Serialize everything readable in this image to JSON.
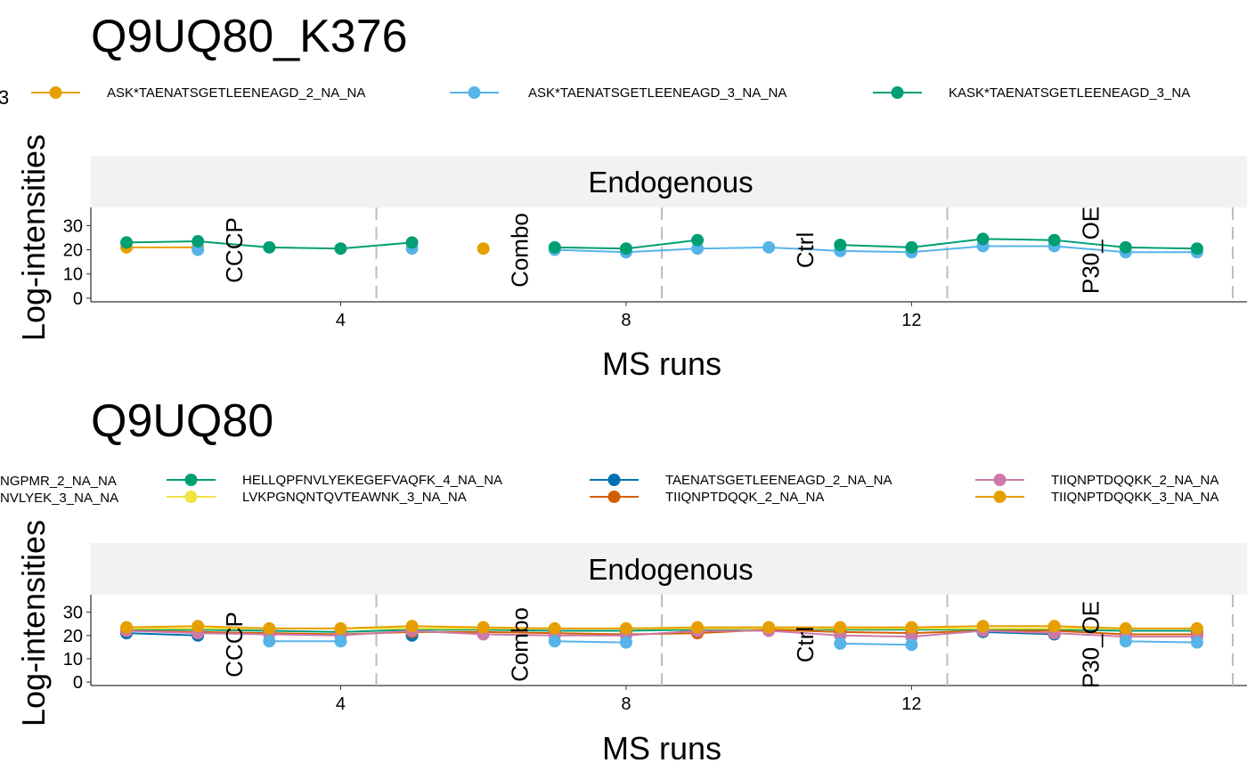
{
  "chart_data": [
    {
      "type": "line",
      "title": "Q9UQ80_K376",
      "facet_label": "Endogenous",
      "xlabel": "MS runs",
      "ylabel": "Log-intensities",
      "xlim": [
        0.5,
        16.7
      ],
      "ylim": [
        -1.5,
        37.5
      ],
      "x_ticks": [
        4,
        8,
        12
      ],
      "y_ticks": [
        0,
        10,
        20,
        30
      ],
      "grid": false,
      "legend_position": "top",
      "legend_cutoff_left": "3",
      "conditions": [
        {
          "label": "CCCP",
          "x": 2.5
        },
        {
          "label": "Combo",
          "x": 6.5
        },
        {
          "label": "Ctrl",
          "x": 10.5
        },
        {
          "label": "P30_OE",
          "x": 14.5
        }
      ],
      "separators": [
        4.5,
        8.5,
        12.5,
        16.5
      ],
      "series": [
        {
          "name": "ASK*TAENATSGETLEENEAGD_2_NA_NA",
          "color": "#E69F00",
          "points": [
            [
              1,
              21
            ],
            [
              2,
              21
            ],
            [
              6,
              20.5
            ]
          ]
        },
        {
          "name": "ASK*TAENATSGETLEENEAGD_3_NA_NA",
          "color": "#56B4E9",
          "points": [
            [
              2,
              20
            ],
            [
              5,
              20.5
            ],
            [
              7,
              20
            ],
            [
              8,
              19
            ],
            [
              9,
              20.5
            ],
            [
              10,
              21
            ],
            [
              11,
              19.5
            ],
            [
              12,
              19
            ],
            [
              13,
              21.5
            ],
            [
              14,
              21.5
            ],
            [
              15,
              19
            ],
            [
              16,
              19
            ]
          ]
        },
        {
          "name": "KASK*TAENATSGETLEENEAGD_3_NA",
          "color": "#009E73",
          "points": [
            [
              1,
              23
            ],
            [
              2,
              23.5
            ],
            [
              3,
              21
            ],
            [
              4,
              20.5
            ],
            [
              5,
              23
            ],
            [
              7,
              21
            ],
            [
              8,
              20.5
            ],
            [
              9,
              24
            ],
            [
              11,
              22
            ],
            [
              12,
              21
            ],
            [
              13,
              24.5
            ],
            [
              14,
              24
            ],
            [
              15,
              21
            ],
            [
              16,
              20.5
            ]
          ]
        }
      ]
    },
    {
      "type": "line",
      "title": "Q9UQ80",
      "facet_label": "Endogenous",
      "xlabel": "MS runs",
      "ylabel": "Log-intensities",
      "xlim": [
        0.5,
        16.7
      ],
      "ylim": [
        -1.5,
        37.5
      ],
      "x_ticks": [
        4,
        8,
        12
      ],
      "y_ticks": [
        0,
        10,
        20,
        30
      ],
      "grid": false,
      "legend_position": "top",
      "legend_cutoff": [
        "NGPMR_2_NA_NA",
        "NVLYEK_3_NA_NA"
      ],
      "conditions": [
        {
          "label": "CCCP",
          "x": 2.5
        },
        {
          "label": "Combo",
          "x": 6.5
        },
        {
          "label": "Ctrl",
          "x": 10.5
        },
        {
          "label": "P30_OE",
          "x": 14.5
        }
      ],
      "separators": [
        4.5,
        8.5,
        12.5,
        16.5
      ],
      "series": [
        {
          "name": "HELLQPFNVLYEKEGEFVAQFK_4_NA_NA",
          "color": "#009E73",
          "points": [
            [
              1,
              22.5
            ],
            [
              2,
              22.5
            ],
            [
              3,
              22
            ],
            [
              4,
              21.5
            ],
            [
              5,
              22.5
            ],
            [
              6,
              22.5
            ],
            [
              7,
              22
            ],
            [
              8,
              22
            ],
            [
              9,
              22.5
            ],
            [
              10,
              23
            ],
            [
              11,
              22.5
            ],
            [
              12,
              22.5
            ],
            [
              13,
              22.5
            ],
            [
              14,
              22.5
            ],
            [
              15,
              22
            ],
            [
              16,
              22
            ]
          ]
        },
        {
          "name": "LVKPGNQNTQVTEAWNK_3_NA_NA",
          "color": "#F0E442",
          "points": [
            [
              1,
              23
            ],
            [
              2,
              23
            ],
            [
              3,
              23
            ],
            [
              4,
              23
            ],
            [
              5,
              23
            ],
            [
              6,
              23
            ],
            [
              7,
              23
            ],
            [
              8,
              23
            ],
            [
              9,
              23
            ],
            [
              10,
              23
            ],
            [
              11,
              23
            ],
            [
              12,
              23
            ],
            [
              13,
              23
            ],
            [
              14,
              23
            ],
            [
              15,
              23
            ],
            [
              16,
              23
            ]
          ]
        },
        {
          "name": "TAENATSGETLEENEAGD_2_NA_NA",
          "color": "#0072B2",
          "points": [
            [
              1,
              21
            ],
            [
              2,
              20
            ],
            [
              5,
              20
            ],
            [
              13,
              21.5
            ],
            [
              14,
              20.5
            ]
          ]
        },
        {
          "name": "TIIQNPTDQQK_2_NA_NA",
          "color": "#D55E00",
          "points": [
            [
              1,
              22
            ],
            [
              2,
              21.5
            ],
            [
              3,
              21
            ],
            [
              4,
              20.5
            ],
            [
              5,
              21.5
            ],
            [
              6,
              21.5
            ],
            [
              7,
              21
            ],
            [
              8,
              20.5
            ],
            [
              9,
              21
            ],
            [
              10,
              22.5
            ],
            [
              11,
              21.5
            ],
            [
              12,
              21
            ],
            [
              13,
              22
            ],
            [
              14,
              22
            ],
            [
              15,
              20.5
            ],
            [
              16,
              20.5
            ]
          ]
        },
        {
          "name": "TIIQNPTDQQKK_2_NA_NA",
          "color": "#CC79A7",
          "points": [
            [
              1,
              22
            ],
            [
              2,
              21
            ],
            [
              3,
              20.5
            ],
            [
              4,
              20
            ],
            [
              5,
              22
            ],
            [
              6,
              20.5
            ],
            [
              7,
              20
            ],
            [
              8,
              20
            ],
            [
              9,
              22
            ],
            [
              10,
              22
            ],
            [
              11,
              20
            ],
            [
              12,
              19.5
            ],
            [
              13,
              22
            ],
            [
              14,
              21
            ],
            [
              15,
              19.5
            ],
            [
              16,
              19.5
            ]
          ]
        },
        {
          "name": "TIIQNPTDQQKK_3_NA_NA",
          "color": "#E69F00",
          "points": [
            [
              1,
              23.5
            ],
            [
              2,
              24
            ],
            [
              3,
              23
            ],
            [
              4,
              23
            ],
            [
              5,
              24
            ],
            [
              6,
              23.5
            ],
            [
              7,
              23
            ],
            [
              8,
              23
            ],
            [
              9,
              23.5
            ],
            [
              10,
              23.5
            ],
            [
              11,
              23.5
            ],
            [
              12,
              23.5
            ],
            [
              13,
              24
            ],
            [
              14,
              24
            ],
            [
              15,
              23
            ],
            [
              16,
              23
            ]
          ]
        },
        {
          "name": "",
          "color": "#56B4E9",
          "points": [
            [
              3,
              17.5
            ],
            [
              4,
              17.5
            ],
            [
              7,
              17.5
            ],
            [
              8,
              17
            ],
            [
              11,
              16.5
            ],
            [
              12,
              16
            ],
            [
              15,
              17.5
            ],
            [
              16,
              17
            ]
          ]
        }
      ]
    }
  ]
}
